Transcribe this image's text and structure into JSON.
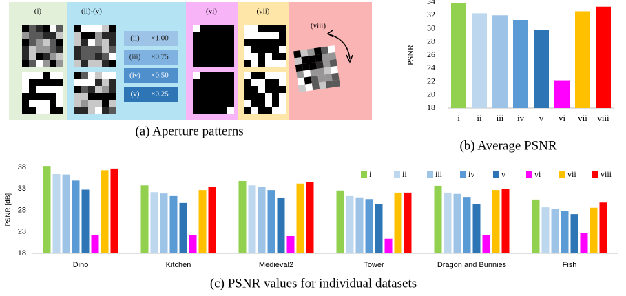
{
  "panel_a": {
    "caption": "(a) Aperture patterns",
    "groups": [
      "(i)",
      "(ii)-(v)",
      "(vi)",
      "(vii)",
      "(viii)"
    ],
    "scales": [
      {
        "label": "(ii)",
        "factor": "×1.00"
      },
      {
        "label": "(iii)",
        "factor": "×0.75"
      },
      {
        "label": "(iv)",
        "factor": "×0.50"
      },
      {
        "label": "(v)",
        "factor": "×0.25"
      }
    ]
  },
  "chart_data": [
    {
      "type": "bar",
      "caption": "(b) Average PSNR",
      "y_label": "PSNR",
      "categories": [
        "i",
        "ii",
        "iii",
        "iv",
        "v",
        "vi",
        "vii",
        "viii"
      ],
      "values": [
        33.8,
        32.3,
        32.0,
        31.3,
        29.8,
        22.2,
        32.6,
        33.3
      ],
      "colors": [
        "#92d050",
        "#bdd7ee",
        "#9dc3e6",
        "#5b9bd5",
        "#2e75b6",
        "#ff00ff",
        "#ffc000",
        "#ff0000"
      ],
      "ylim": [
        18,
        34
      ],
      "yticks": [
        18,
        20,
        22,
        24,
        26,
        28,
        30,
        32,
        34
      ],
      "grid": false
    },
    {
      "type": "grouped_bar",
      "caption": "(c) PSNR values for individual datasets",
      "y_label": "PSNR [dB]",
      "categories": [
        "Dino",
        "Kitchen",
        "Medieval2",
        "Tower",
        "Dragon and Bunnies",
        "Fish"
      ],
      "series": [
        {
          "name": "i",
          "color": "#92d050",
          "values": [
            38.3,
            33.8,
            34.8,
            32.6,
            33.7,
            30.5
          ]
        },
        {
          "name": "ii",
          "color": "#bdd7ee",
          "values": [
            36.4,
            32.2,
            33.8,
            31.3,
            32.1,
            28.7
          ]
        },
        {
          "name": "iii",
          "color": "#9dc3e6",
          "values": [
            36.3,
            31.9,
            33.4,
            31.0,
            31.8,
            28.4
          ]
        },
        {
          "name": "iv",
          "color": "#5b9bd5",
          "values": [
            34.9,
            31.3,
            32.7,
            30.6,
            31.1,
            27.9
          ]
        },
        {
          "name": "v",
          "color": "#2e75b6",
          "values": [
            32.8,
            29.7,
            30.8,
            29.5,
            29.5,
            27.1
          ]
        },
        {
          "name": "vi",
          "color": "#ff00ff",
          "values": [
            22.3,
            22.2,
            22.0,
            21.4,
            22.2,
            22.7
          ]
        },
        {
          "name": "vii",
          "color": "#ffc000",
          "values": [
            37.3,
            32.7,
            34.2,
            32.1,
            32.7,
            28.6
          ]
        },
        {
          "name": "viii",
          "color": "#ff0000",
          "values": [
            37.7,
            33.4,
            34.5,
            32.1,
            33.0,
            29.8
          ]
        }
      ],
      "ylim": [
        18,
        38
      ],
      "yticks": [
        18,
        23,
        28,
        33,
        38
      ],
      "grid": false,
      "legend": "top-right"
    }
  ]
}
